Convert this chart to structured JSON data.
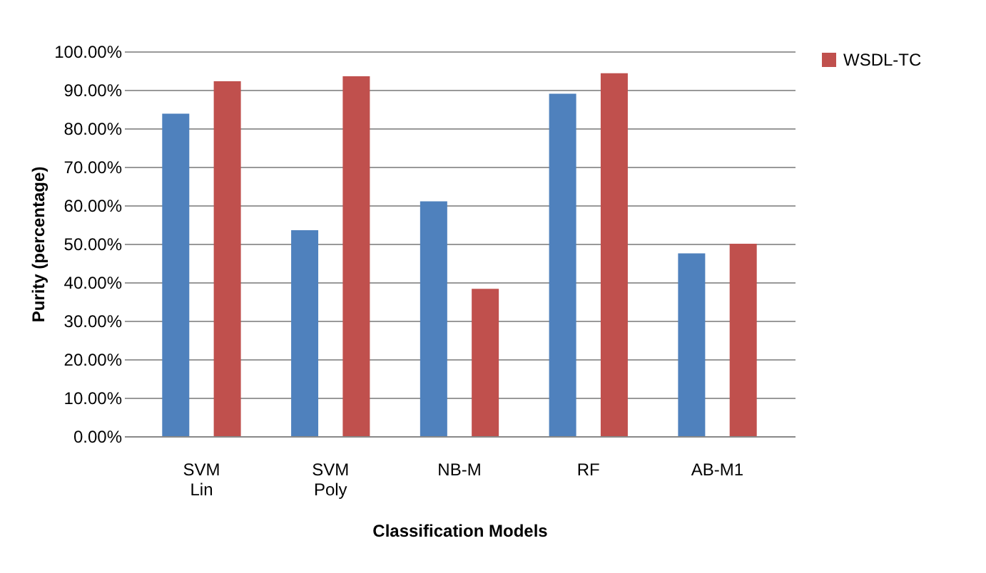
{
  "chart_data": {
    "type": "bar",
    "xlabel": "Classification  Models",
    "ylabel": "Purity (percentage)",
    "categories": [
      "SVM Lin",
      "SVM Poly",
      "NB-M",
      "RF",
      "AB-M1"
    ],
    "series": [
      {
        "color": "#4f81bd",
        "values": [
          83.8,
          53.5,
          61.0,
          89.0,
          47.5
        ]
      },
      {
        "name": "WSDL-TC",
        "color": "#c0504d",
        "values": [
          92.2,
          93.5,
          38.3,
          94.3,
          50.0
        ]
      }
    ],
    "ylim": [
      0,
      100
    ],
    "yticks": [
      {
        "value": 0,
        "label": "0.00%"
      },
      {
        "value": 10,
        "label": "10.00%"
      },
      {
        "value": 20,
        "label": "20.00%"
      },
      {
        "value": 30,
        "label": "30.00%"
      },
      {
        "value": 40,
        "label": "40.00%"
      },
      {
        "value": 50,
        "label": "50.00%"
      },
      {
        "value": 60,
        "label": "60.00%"
      },
      {
        "value": 70,
        "label": "70.00%"
      },
      {
        "value": 80,
        "label": "80.00%"
      },
      {
        "value": 90,
        "label": "90.00%"
      },
      {
        "value": 100,
        "label": "100.00%"
      }
    ],
    "grid": "y",
    "legend": "right"
  }
}
